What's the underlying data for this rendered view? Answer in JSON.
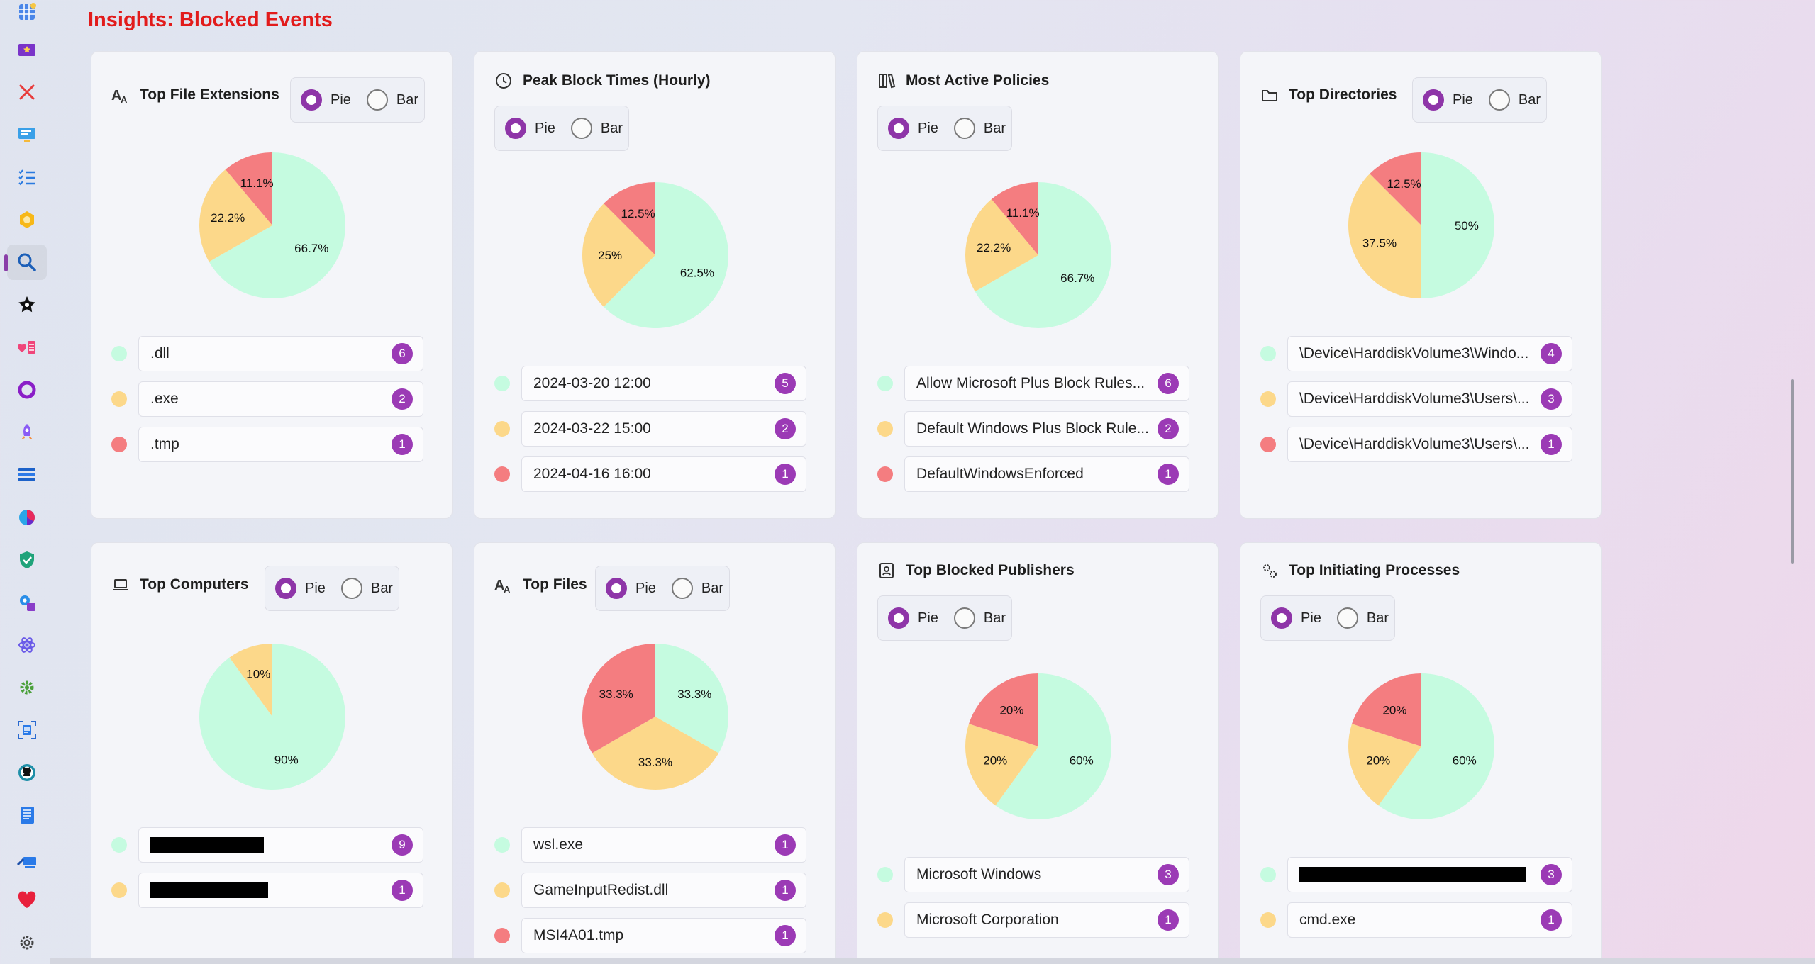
{
  "page_title": "Insights: Blocked Events",
  "toggle": {
    "pie_label": "Pie",
    "bar_label": "Bar"
  },
  "colors": {
    "green": "#c5fbe0",
    "yellow": "#fcd88a",
    "red": "#f47d80",
    "accent": "#8e35a8",
    "title": "#e21b1b"
  },
  "rail_icons": [
    "grid-icon",
    "folder-star-icon",
    "close-icon",
    "policy-screen-icon",
    "checklist-icon",
    "hexagon-icon",
    "search-icon",
    "star-icon",
    "heart-list-icon",
    "ring-icon",
    "rocket-icon",
    "layers-icon",
    "pie-chart-icon",
    "shield-check-icon",
    "gear-puzzle-icon",
    "atom-icon",
    "gear-icon",
    "scan-document-icon",
    "github-icon",
    "notebook-icon",
    "pen-monitor-icon",
    "heart-icon",
    "settings-icon"
  ],
  "cards": [
    {
      "title": "Top File Extensions",
      "icon": "font-size-icon",
      "chart_data": {
        "type": "pie",
        "categories": [
          ".dll",
          ".exe",
          ".tmp"
        ],
        "values": [
          66.7,
          22.2,
          11.1
        ],
        "labels": [
          "66.7%",
          "22.2%",
          "11.1%"
        ]
      },
      "items": [
        {
          "label": ".dll",
          "count": "6"
        },
        {
          "label": ".exe",
          "count": "2"
        },
        {
          "label": ".tmp",
          "count": "1"
        }
      ]
    },
    {
      "title": "Peak Block Times (Hourly)",
      "icon": "clock-icon",
      "chart_data": {
        "type": "pie",
        "categories": [
          "2024-03-20 12:00",
          "2024-03-22 15:00",
          "2024-04-16 16:00"
        ],
        "values": [
          62.5,
          25,
          12.5
        ],
        "labels": [
          "62.5%",
          "25%",
          "12.5%"
        ]
      },
      "items": [
        {
          "label": "2024-03-20 12:00",
          "count": "5"
        },
        {
          "label": "2024-03-22 15:00",
          "count": "2"
        },
        {
          "label": "2024-04-16 16:00",
          "count": "1"
        }
      ]
    },
    {
      "title": "Most Active Policies",
      "icon": "books-icon",
      "chart_data": {
        "type": "pie",
        "categories": [
          "Allow Microsoft Plus Block Rules...",
          "Default Windows Plus Block Rule...",
          "DefaultWindowsEnforced"
        ],
        "values": [
          66.7,
          22.2,
          11.1
        ],
        "labels": [
          "66.7%",
          "22.2%",
          "11.1%"
        ]
      },
      "items": [
        {
          "label": "Allow Microsoft Plus Block Rules...",
          "count": "6"
        },
        {
          "label": "Default Windows Plus Block Rule...",
          "count": "2"
        },
        {
          "label": "DefaultWindowsEnforced",
          "count": "1"
        }
      ]
    },
    {
      "title": "Top Directories",
      "icon": "folder-icon",
      "chart_data": {
        "type": "pie",
        "categories": [
          "\\Device\\HarddiskVolume3\\Windo...",
          "\\Device\\HarddiskVolume3\\Users\\...",
          "\\Device\\HarddiskVolume3\\Users\\..."
        ],
        "values": [
          50,
          37.5,
          12.5
        ],
        "labels": [
          "50%",
          "37.5%",
          "12.5%"
        ]
      },
      "items": [
        {
          "label": "\\Device\\HarddiskVolume3\\Windo...",
          "count": "4"
        },
        {
          "label": "\\Device\\HarddiskVolume3\\Users\\...",
          "count": "3"
        },
        {
          "label": "\\Device\\HarddiskVolume3\\Users\\...",
          "count": "1"
        }
      ]
    },
    {
      "title": "Top Computers",
      "icon": "laptop-icon",
      "chart_data": {
        "type": "pie",
        "categories": [
          "[redacted]",
          "[redacted]"
        ],
        "values": [
          90,
          10
        ],
        "labels": [
          "90%",
          "10%"
        ]
      },
      "items": [
        {
          "label": "",
          "count": "9",
          "redacted": true
        },
        {
          "label": "",
          "count": "1",
          "redacted": true
        }
      ]
    },
    {
      "title": "Top Files",
      "icon": "font-size-icon",
      "chart_data": {
        "type": "pie",
        "categories": [
          "wsl.exe",
          "GameInputRedist.dll",
          "MSI4A01.tmp"
        ],
        "values": [
          33.3,
          33.3,
          33.3
        ],
        "labels": [
          "33.3%",
          "33.3%",
          "33.3%"
        ]
      },
      "items": [
        {
          "label": "wsl.exe",
          "count": "1"
        },
        {
          "label": "GameInputRedist.dll",
          "count": "1"
        },
        {
          "label": "MSI4A01.tmp",
          "count": "1"
        }
      ]
    },
    {
      "title": "Top Blocked Publishers",
      "icon": "contact-card-icon",
      "chart_data": {
        "type": "pie",
        "categories": [
          "Microsoft Windows",
          "Microsoft Corporation",
          ""
        ],
        "values": [
          60,
          20,
          20
        ],
        "labels": [
          "60%",
          "20%",
          "20%"
        ]
      },
      "items": [
        {
          "label": "Microsoft Windows",
          "count": "3"
        },
        {
          "label": "Microsoft Corporation",
          "count": "1"
        }
      ]
    },
    {
      "title": "Top Initiating Processes",
      "icon": "gears-icon",
      "chart_data": {
        "type": "pie",
        "categories": [
          "[redacted]",
          "cmd.exe",
          ""
        ],
        "values": [
          60,
          20,
          20
        ],
        "labels": [
          "60%",
          "20%",
          "20%"
        ]
      },
      "items": [
        {
          "label": "",
          "count": "3",
          "redacted": true
        },
        {
          "label": "cmd.exe",
          "count": "1"
        }
      ]
    }
  ]
}
